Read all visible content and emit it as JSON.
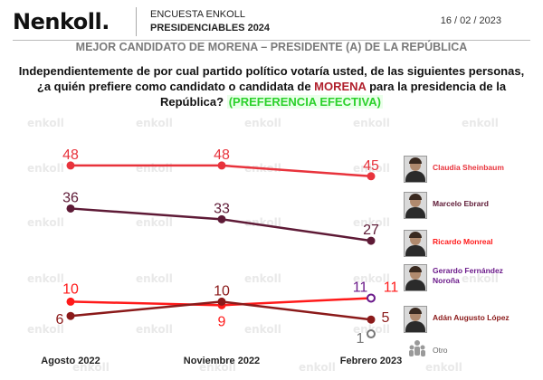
{
  "header": {
    "logo_text": "enkoll.",
    "logo_mark": "N",
    "survey_line1": "ENCUESTA ENKOLL",
    "survey_line2": "PRESIDENCIABLES 2024",
    "date": "16 / 02 / 2023"
  },
  "subtitle": "MEJOR CANDIDATO DE MORENA – PRESIDENTE (A) DE LA REPÚBLICA",
  "question": {
    "part1": "Independientemente de por cual partido político votaría usted, de las siguientes personas, ¿a quién prefiere como candidato o candidata de ",
    "party": "MORENA",
    "part2": " para la presidencia de la República? ",
    "highlight": "(PREFERENCIA EFECTIVA)"
  },
  "watermark_text": "enkoll",
  "colors": {
    "morena": "#b01f2c",
    "effective": "#2bd12b"
  },
  "chart_data": {
    "type": "line",
    "categories": [
      "Agosto 2022",
      "Noviembre 2022",
      "Febrero 2023"
    ],
    "ylim": [
      0,
      50
    ],
    "series": [
      {
        "name": "Claudia Sheinbaum",
        "color": "#e8333c",
        "values": [
          48,
          48,
          45
        ]
      },
      {
        "name": "Marcelo Ebrard",
        "color": "#5e1a36",
        "values": [
          36,
          33,
          27
        ]
      },
      {
        "name": "Ricardo Monreal",
        "color": "#ff1a1a",
        "values": [
          10,
          9,
          11
        ]
      },
      {
        "name": "Gerardo Fernández Noroña",
        "color": "#6b1a8a",
        "values": [
          null,
          null,
          11
        ]
      },
      {
        "name": "Adán Augusto López",
        "color": "#8b1a1a",
        "values": [
          6,
          10,
          5
        ]
      },
      {
        "name": "Otro",
        "color": "#777777",
        "values": [
          null,
          null,
          1
        ]
      }
    ]
  },
  "legend": [
    {
      "name": "Claudia Sheinbaum",
      "color": "#e8333c"
    },
    {
      "name": "Marcelo Ebrard",
      "color": "#5e1a36"
    },
    {
      "name": "Ricardo Monreal",
      "color": "#ff1a1a"
    },
    {
      "name": "Gerardo Fernández Noroña",
      "color": "#6b1a8a"
    },
    {
      "name": "Adán Augusto López",
      "color": "#8b1a1a"
    },
    {
      "name": "Otro",
      "color": "#777777"
    }
  ]
}
